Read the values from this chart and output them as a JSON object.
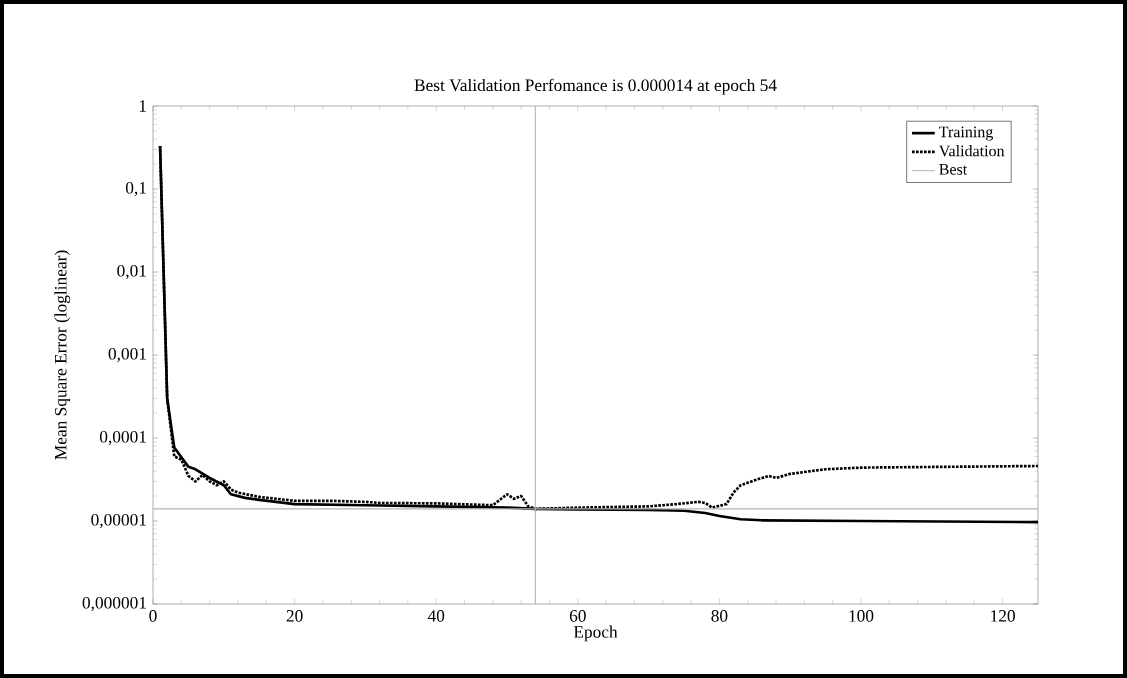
{
  "chart_data": {
    "type": "line",
    "title": "Best Validation Perfomance is 0.000014 at epoch 54",
    "xlabel": "Epoch",
    "ylabel": "Mean Square Error (loglinear)",
    "log": "y",
    "xlim": [
      0,
      125
    ],
    "xticks": [
      0,
      20,
      40,
      60,
      80,
      100,
      120
    ],
    "ylim": [
      1e-06,
      1
    ],
    "yticks": [
      {
        "value": 1e-06,
        "label": "0,000001"
      },
      {
        "value": 1e-05,
        "label": "0,00001"
      },
      {
        "value": 0.0001,
        "label": "0,0001"
      },
      {
        "value": 0.001,
        "label": "0,001"
      },
      {
        "value": 0.01,
        "label": "0,01"
      },
      {
        "value": 0.1,
        "label": "0,1"
      },
      {
        "value": 1,
        "label": "1"
      }
    ],
    "grid": false,
    "legend": "top right",
    "marker": "none",
    "series": [
      {
        "name": "Training",
        "color": "#000000",
        "line_style": "solid",
        "x": [
          1,
          2,
          3,
          5,
          6,
          8,
          10,
          11,
          13,
          15,
          20,
          30,
          40,
          50,
          54,
          60,
          70,
          75,
          78,
          80,
          83,
          86,
          100,
          125
        ],
        "values": [
          0.33,
          0.0003,
          7.7e-05,
          4.5e-05,
          4.2e-05,
          3.3e-05,
          2.7e-05,
          2.1e-05,
          1.9e-05,
          1.8e-05,
          1.6e-05,
          1.55e-05,
          1.5e-05,
          1.45e-05,
          1.4e-05,
          1.38e-05,
          1.36e-05,
          1.33e-05,
          1.25e-05,
          1.15e-05,
          1.05e-05,
          1.02e-05,
          1e-05,
          9.7e-06
        ]
      },
      {
        "name": "Validation",
        "color": "#000000",
        "line_style": "dotted",
        "x": [
          1,
          2,
          3,
          4,
          5,
          6,
          7,
          8,
          9,
          10,
          11,
          12,
          15,
          20,
          25,
          30,
          32,
          40,
          48,
          50,
          51,
          52,
          53,
          54,
          60,
          70,
          74,
          77,
          78,
          79,
          81,
          82,
          83,
          85,
          87,
          88,
          90,
          95,
          100,
          125
        ],
        "values": [
          0.33,
          0.0003,
          6e-05,
          5.5e-05,
          3.5e-05,
          3e-05,
          3.6e-05,
          3e-05,
          2.7e-05,
          3e-05,
          2.4e-05,
          2.2e-05,
          1.95e-05,
          1.75e-05,
          1.75e-05,
          1.7e-05,
          1.65e-05,
          1.63e-05,
          1.55e-05,
          2.1e-05,
          1.85e-05,
          2e-05,
          1.5e-05,
          1.4e-05,
          1.45e-05,
          1.5e-05,
          1.6e-05,
          1.7e-05,
          1.65e-05,
          1.45e-05,
          1.6e-05,
          2.2e-05,
          2.7e-05,
          3.1e-05,
          3.5e-05,
          3.3e-05,
          3.7e-05,
          4.2e-05,
          4.4e-05,
          4.6e-05
        ]
      }
    ],
    "ref_lines": [
      {
        "axis": "y",
        "value": 1.4e-05,
        "label": "Best",
        "color": "#b4b4b4"
      },
      {
        "axis": "x",
        "value": 54,
        "color": "#b4b4b4"
      }
    ]
  }
}
